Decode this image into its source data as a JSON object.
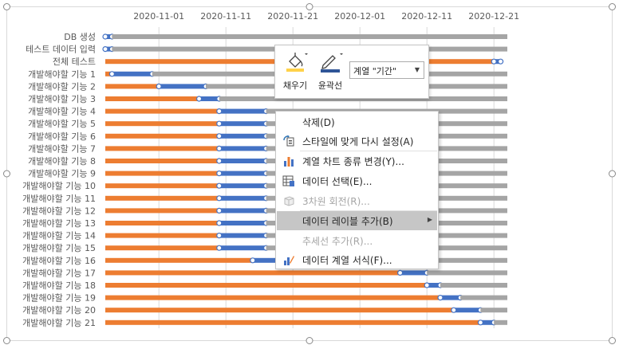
{
  "colors": {
    "bar_orange": "#ed7d31",
    "bar_blue": "#4472c4",
    "bar_gray": "#a5a5a5",
    "grid": "#d9d9d9",
    "handle": "#4472c4"
  },
  "chart_data": {
    "type": "bar",
    "orientation": "horizontal",
    "stacked": true,
    "x_axis_position": "top",
    "x_range": [
      "2020-10-24",
      "2021-01-02"
    ],
    "x_ticks": [
      "2020-11-01",
      "2020-11-11",
      "2020-11-21",
      "2020-12-01",
      "2020-12-11",
      "2020-12-21"
    ],
    "grid": true,
    "categories": [
      "DB 생성",
      "테스트 데이터 입력",
      "전체 테스트",
      "개발해야할 기능 1",
      "개발해야할 기능 2",
      "개발해야할 기능 3",
      "개발해야할 기능 4",
      "개발해야할 기능 5",
      "개발해야할 기능 6",
      "개발해야할 기능 7",
      "개발해야할 기능 8",
      "개발해야할 기능 9",
      "개발해야할 기능 10",
      "개발해야할 기능 11",
      "개발해야할 기능 12",
      "개발해야할 기능 13",
      "개발해야할 기능 14",
      "개발해야할 기능 15",
      "개발해야할 기능 16",
      "개발해야할 기능 17",
      "개발해야할 기능 18",
      "개발해야할 기능 19",
      "개발해야할 기능 20",
      "개발해야할 기능 21"
    ],
    "start": [
      "2020-10-24",
      "2020-10-24",
      "2020-10-24",
      "2020-10-24",
      "2020-10-24",
      "2020-10-24",
      "2020-10-24",
      "2020-10-24",
      "2020-10-24",
      "2020-10-24",
      "2020-10-24",
      "2020-10-24",
      "2020-10-24",
      "2020-10-24",
      "2020-10-24",
      "2020-10-24",
      "2020-10-24",
      "2020-10-24",
      "2020-10-24",
      "2020-10-24",
      "2020-10-24",
      "2020-10-24",
      "2020-10-24",
      "2020-10-24"
    ],
    "series": [
      {
        "values": [
          0,
          0,
          58,
          1,
          8,
          14,
          17,
          17,
          17,
          17,
          17,
          17,
          17,
          17,
          17,
          17,
          17,
          17,
          22,
          44,
          48,
          50,
          52,
          56
        ]
      },
      {
        "values": [
          1,
          1,
          1,
          6,
          7,
          3,
          7,
          7,
          7,
          7,
          7,
          7,
          7,
          7,
          7,
          7,
          7,
          7,
          20,
          4,
          2,
          3,
          4,
          2
        ]
      },
      {
        "values": [
          59,
          59,
          0,
          53,
          45,
          43,
          36,
          36,
          36,
          36,
          36,
          36,
          36,
          36,
          36,
          36,
          36,
          36,
          18,
          12,
          10,
          7,
          4,
          2
        ]
      }
    ]
  },
  "toolbar": {
    "fill_label": "채우기",
    "outline_label": "윤곽선",
    "series_select": "계열 \"기간\""
  },
  "context_menu": {
    "delete": "삭제(D)",
    "reset_style": "스타일에 맞게 다시 설정(A)",
    "change_chart_type": "계열 차트 종류 변경(Y)...",
    "select_data": "데이터 선택(E)...",
    "rotate_3d": "3차원 회전(R)...",
    "add_data_labels": "데이터 레이블 추가(B)",
    "add_trendline": "추세선 추가(R)...",
    "format_series": "데이터 계열 서식(F)..."
  }
}
